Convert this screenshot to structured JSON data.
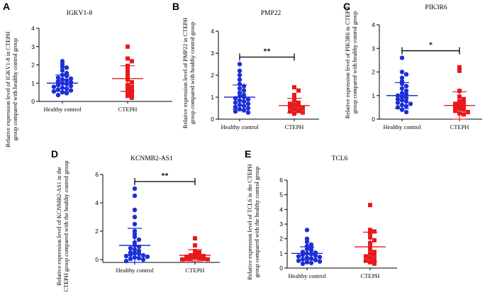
{
  "colors": {
    "healthy": "#1c2fd6",
    "cteph": "#e8191c",
    "axis": "#000000"
  },
  "chart_data": [
    {
      "label": "A",
      "type": "scatter",
      "title": "IGKV1-8",
      "ylabel": [
        "Relative expression level of IGKV1-8 in CTEPH",
        "group compared with healthy control group"
      ],
      "categories": [
        "Healthy control",
        "CTEPH"
      ],
      "ylim": [
        0,
        4
      ],
      "yticks": [
        "0",
        "1",
        "2",
        "3",
        "4"
      ],
      "series": [
        {
          "name": "Healthy control",
          "marker": "circle",
          "mean": 1.0,
          "sd": 0.45,
          "values": [
            2.2,
            2.05,
            1.9,
            1.85,
            1.7,
            1.55,
            1.45,
            1.4,
            1.3,
            1.25,
            1.2,
            1.15,
            1.1,
            1.05,
            1.0,
            0.95,
            0.9,
            0.85,
            0.8,
            0.75,
            0.7,
            0.65,
            0.6,
            0.55,
            0.5,
            0.45,
            0.35
          ]
        },
        {
          "name": "CTEPH",
          "marker": "square",
          "mean": 1.25,
          "sd": 0.7,
          "values": [
            3.0,
            2.35,
            2.2,
            1.95,
            1.75,
            1.55,
            1.35,
            1.2,
            1.05,
            0.9,
            0.8,
            0.7,
            0.6,
            0.5,
            0.4,
            0.3,
            0.2
          ]
        }
      ],
      "significance": ""
    },
    {
      "label": "B",
      "type": "scatter",
      "title": "PMP22",
      "ylabel": [
        "Relative expression level of PMP22 in CTEPH",
        "group compared with healthy control group"
      ],
      "categories": [
        "Healthy control",
        "CTEPH"
      ],
      "ylim": [
        0,
        4
      ],
      "yticks": [
        "0",
        "1",
        "2",
        "3",
        "4"
      ],
      "series": [
        {
          "name": "Healthy control",
          "marker": "circle",
          "mean": 1.0,
          "sd": 0.55,
          "values": [
            2.5,
            2.2,
            2.0,
            1.8,
            1.6,
            1.5,
            1.4,
            1.3,
            1.2,
            1.1,
            1.05,
            1.0,
            0.95,
            0.9,
            0.85,
            0.8,
            0.75,
            0.7,
            0.65,
            0.6,
            0.55,
            0.5,
            0.45,
            0.4,
            0.35,
            0.3
          ]
        },
        {
          "name": "CTEPH",
          "marker": "square",
          "mean": 0.62,
          "sd": 0.33,
          "values": [
            1.45,
            1.3,
            1.1,
            0.95,
            0.85,
            0.75,
            0.7,
            0.65,
            0.6,
            0.55,
            0.5,
            0.45,
            0.4,
            0.35,
            0.3,
            0.25
          ]
        }
      ],
      "significance": "**"
    },
    {
      "label": "C",
      "type": "scatter",
      "title": "PIK3R6",
      "ylabel": [
        "Relative expression level of PIK3R6 in CTEPH",
        "group compared with healthy control group"
      ],
      "categories": [
        "Healthy control",
        "CTEPH"
      ],
      "ylim": [
        0,
        4
      ],
      "yticks": [
        "0",
        "1",
        "2",
        "3",
        "4"
      ],
      "series": [
        {
          "name": "Healthy control",
          "marker": "circle",
          "mean": 1.0,
          "sd": 0.55,
          "values": [
            2.6,
            2.0,
            1.9,
            1.75,
            1.6,
            1.5,
            1.4,
            1.3,
            1.2,
            1.1,
            1.05,
            1.0,
            0.95,
            0.9,
            0.85,
            0.8,
            0.75,
            0.7,
            0.65,
            0.6,
            0.55,
            0.5,
            0.4,
            0.3
          ]
        },
        {
          "name": "CTEPH",
          "marker": "square",
          "mean": 0.58,
          "sd": 0.58,
          "values": [
            2.2,
            2.05,
            1.2,
            0.95,
            0.85,
            0.75,
            0.7,
            0.65,
            0.6,
            0.55,
            0.5,
            0.45,
            0.4,
            0.35,
            0.3,
            0.25,
            0.2
          ]
        }
      ],
      "significance": "*"
    },
    {
      "label": "D",
      "type": "scatter",
      "title": "KCNMB2-AS1",
      "ylabel": [
        "Relative expression level of KCNMB2-AS1 in the",
        "CTEPH group compared with the healthy control group"
      ],
      "categories": [
        "Healthy control",
        "CTEPH"
      ],
      "ylim": [
        -0.2,
        6
      ],
      "yticks": [
        "0",
        "2",
        "4",
        "6"
      ],
      "series": [
        {
          "name": "Healthy control",
          "marker": "circle",
          "mean": 1.0,
          "sd": 1.2,
          "values": [
            5.0,
            4.5,
            3.5,
            3.0,
            2.5,
            2.0,
            1.8,
            1.6,
            1.4,
            1.2,
            1.0,
            0.9,
            0.8,
            0.7,
            0.6,
            0.5,
            0.45,
            0.4,
            0.35,
            0.3,
            0.25,
            0.2,
            0.15,
            0.1,
            0.05,
            0.0,
            -0.1
          ]
        },
        {
          "name": "CTEPH",
          "marker": "square",
          "mean": 0.3,
          "sd": 0.4,
          "values": [
            1.5,
            1.0,
            0.6,
            0.5,
            0.4,
            0.35,
            0.3,
            0.25,
            0.2,
            0.15,
            0.1,
            0.08,
            0.05,
            0.03,
            0.02,
            0.01
          ]
        }
      ],
      "significance": "**"
    },
    {
      "label": "E",
      "type": "scatter",
      "title": "TCL6",
      "ylabel": [
        "Relative expression level of TCL6 in the CTEPH",
        "group compared with the healthy control group"
      ],
      "categories": [
        "Healthy control",
        "CTEPH"
      ],
      "ylim": [
        0,
        6
      ],
      "yticks": [
        "0",
        "1",
        "2",
        "3",
        "4",
        "5",
        "6"
      ],
      "series": [
        {
          "name": "Healthy control",
          "marker": "circle",
          "mean": 1.0,
          "sd": 0.45,
          "values": [
            2.6,
            2.0,
            1.8,
            1.6,
            1.5,
            1.4,
            1.3,
            1.2,
            1.1,
            1.05,
            1.0,
            0.95,
            0.9,
            0.85,
            0.8,
            0.75,
            0.7,
            0.65,
            0.6,
            0.55,
            0.5,
            0.45,
            0.4,
            0.35,
            0.3
          ]
        },
        {
          "name": "CTEPH",
          "marker": "square",
          "mean": 1.45,
          "sd": 1.0,
          "values": [
            4.3,
            2.6,
            2.5,
            2.4,
            2.1,
            1.9,
            1.7,
            1.5,
            1.3,
            1.1,
            1.0,
            0.9,
            0.8,
            0.7,
            0.6,
            0.5,
            0.4,
            0.3
          ]
        }
      ],
      "significance": ""
    }
  ]
}
